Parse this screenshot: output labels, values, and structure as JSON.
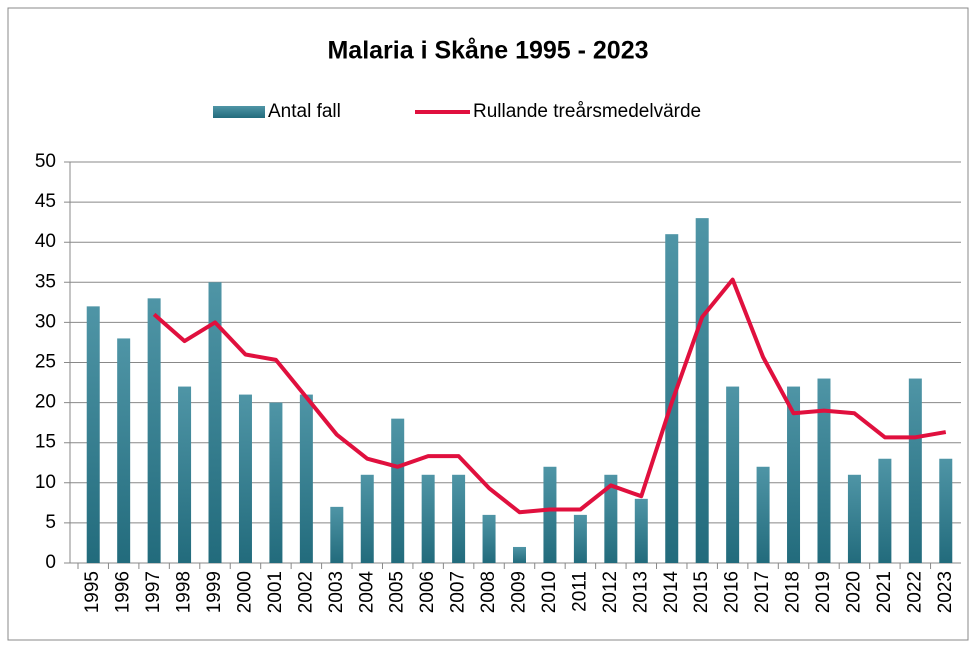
{
  "chart_data": {
    "type": "bar+line",
    "title": "Malaria i Skåne 1995 - 2023",
    "categories": [
      "1995",
      "1996",
      "1997",
      "1998",
      "1999",
      "2000",
      "2001",
      "2002",
      "2003",
      "2004",
      "2005",
      "2006",
      "2007",
      "2008",
      "2009",
      "2010",
      "2011",
      "2012",
      "2013",
      "2014",
      "2015",
      "2016",
      "2017",
      "2018",
      "2019",
      "2020",
      "2021",
      "2022",
      "2023"
    ],
    "series": [
      {
        "name": "Antal fall",
        "type": "bar",
        "color": "#31849b",
        "values": [
          32,
          28,
          33,
          22,
          35,
          21,
          20,
          21,
          7,
          11,
          18,
          11,
          11,
          6,
          2,
          12,
          6,
          11,
          8,
          41,
          43,
          22,
          12,
          22,
          23,
          11,
          13,
          23,
          13
        ]
      },
      {
        "name": "Rullande treårsmedelvärde",
        "type": "line",
        "color": "#e0103e",
        "values": [
          null,
          null,
          31,
          27.67,
          30,
          26,
          25.33,
          20.67,
          16,
          13,
          12,
          13.33,
          13.33,
          9.33,
          6.33,
          6.67,
          6.67,
          9.67,
          8.33,
          20,
          30.67,
          35.33,
          25.67,
          18.67,
          19,
          18.67,
          15.67,
          15.67,
          16.33
        ]
      }
    ],
    "ylim": [
      0,
      50
    ],
    "yticks": [
      0,
      5,
      10,
      15,
      20,
      25,
      30,
      35,
      40,
      45,
      50
    ],
    "grid": true,
    "legend": "top"
  }
}
